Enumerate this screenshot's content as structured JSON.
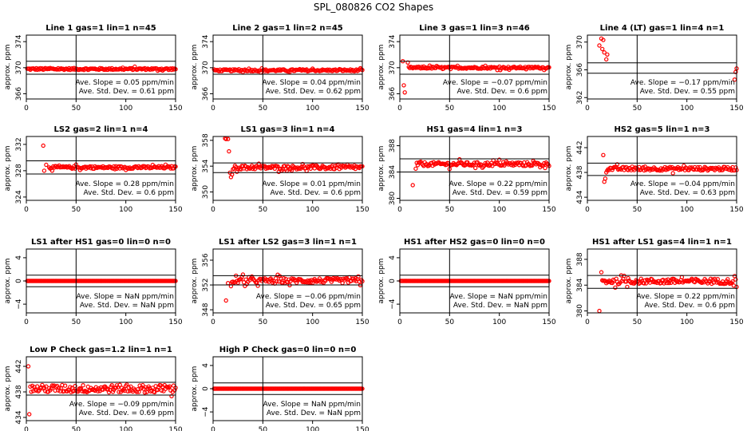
{
  "title": "SPL_080826  CO2 Shapes",
  "chart_data": [
    {
      "type": "scatter",
      "title": "Line 1 gas=1 lin=1 n=45",
      "ylabel": "approx. ppm",
      "xlim": [
        0,
        150
      ],
      "xticks": [
        0,
        50,
        100,
        150
      ],
      "ylim": [
        365.2,
        375.0
      ],
      "yticks": [
        366,
        370,
        374
      ],
      "hlines": [
        371.0,
        369.0
      ],
      "vline": 50,
      "center": 369.8,
      "noise": 0.15,
      "outliers": [],
      "slope_label": "Ave. Slope =",
      "slope_value": "0.05",
      "slope_unit": "ppm/min",
      "sd_label": "Ave. Std. Dev. =",
      "sd_value": "0.61",
      "sd_unit": "ppm"
    },
    {
      "type": "scatter",
      "title": "Line 2 gas=1 lin=2 n=45",
      "ylabel": "approx. ppm",
      "xlim": [
        0,
        150
      ],
      "xticks": [
        0,
        50,
        100,
        150
      ],
      "ylim": [
        365.2,
        375.0
      ],
      "yticks": [
        366,
        370,
        374
      ],
      "hlines": [
        371.0,
        369.0
      ],
      "vline": 50,
      "center": 369.6,
      "noise": 0.15,
      "outliers": [],
      "slope_label": "Ave. Slope =",
      "slope_value": "0.04",
      "slope_unit": "ppm/min",
      "sd_label": "Ave. Std. Dev. =",
      "sd_value": "0.62",
      "sd_unit": "ppm"
    },
    {
      "type": "scatter",
      "title": "Line 3 gas=1 lin=3 n=46",
      "ylabel": "approx. ppm",
      "xlim": [
        0,
        150
      ],
      "xticks": [
        0,
        50,
        100,
        150
      ],
      "ylim": [
        365.2,
        375.0
      ],
      "yticks": [
        366,
        370,
        374
      ],
      "hlines": [
        371.0,
        369.0
      ],
      "vline": 50,
      "center": 370.0,
      "noise": 0.15,
      "outliers": [
        [
          3,
          371.0
        ],
        [
          4,
          367.3
        ],
        [
          5,
          366.2
        ],
        [
          8,
          370.8
        ]
      ],
      "slope_label": "Ave. Slope =",
      "slope_value": "−0.07",
      "slope_unit": "ppm/min",
      "sd_label": "Ave. Std. Dev. =",
      "sd_value": "0.6",
      "sd_unit": "ppm"
    },
    {
      "type": "scatter",
      "title": "Line 4 (LT) gas=1 lin=4 n=1",
      "ylabel": "approx. ppm",
      "xlim": [
        0,
        150
      ],
      "xticks": [
        0,
        50,
        100,
        150
      ],
      "ylim": [
        361.8,
        371.0
      ],
      "yticks": [
        362,
        366,
        370
      ],
      "hlines": [
        367.0,
        365.5
      ],
      "vline": 50,
      "center": 366.4,
      "noise": 0.45,
      "outliers": [
        [
          12,
          369.5
        ],
        [
          14,
          370.5
        ],
        [
          15,
          369.0
        ],
        [
          16,
          370.3
        ],
        [
          17,
          368.5
        ],
        [
          19,
          367.5
        ],
        [
          20,
          368.2
        ],
        [
          148,
          364.6
        ]
      ],
      "slope_label": "Ave. Slope =",
      "slope_value": "−0.17",
      "slope_unit": "ppm/min",
      "sd_label": "Ave. Std. Dev. =",
      "sd_value": "0.55",
      "sd_unit": "ppm"
    },
    {
      "type": "scatter",
      "title": "LS2 gas=2 lin=1 n=4",
      "ylabel": "approx. ppm",
      "xlim": [
        0,
        150
      ],
      "xticks": [
        0,
        50,
        100,
        150
      ],
      "ylim": [
        323.5,
        333.2
      ],
      "yticks": [
        324,
        328,
        332
      ],
      "hlines": [
        329.5,
        327.5
      ],
      "vline": 50,
      "center": 328.5,
      "noise": 0.2,
      "outliers": [
        [
          17,
          331.8
        ],
        [
          18,
          328.0
        ],
        [
          20,
          328.9
        ],
        [
          23,
          328.5
        ]
      ],
      "slope_label": "Ave. Slope =",
      "slope_value": "0.28",
      "slope_unit": "ppm/min",
      "sd_label": "Ave. Std. Dev. =",
      "sd_value": "0.6",
      "sd_unit": "ppm"
    },
    {
      "type": "scatter",
      "title": "LS1 gas=3 lin=1 n=4",
      "ylabel": "approx. ppm",
      "xlim": [
        0,
        150
      ],
      "xticks": [
        0,
        50,
        100,
        150
      ],
      "ylim": [
        348.7,
        358.6
      ],
      "yticks": [
        350,
        354,
        358
      ],
      "hlines": [
        354.5,
        353.0
      ],
      "vline": 50,
      "center": 353.8,
      "noise": 0.3,
      "outliers": [
        [
          12,
          358.3
        ],
        [
          13,
          358.2
        ],
        [
          15,
          358.2
        ],
        [
          16,
          356.3
        ],
        [
          17,
          353.0
        ],
        [
          18,
          352.3
        ],
        [
          19,
          352.7
        ]
      ],
      "slope_label": "Ave. Slope =",
      "slope_value": "0.01",
      "slope_unit": "ppm/min",
      "sd_label": "Ave. Std. Dev. =",
      "sd_value": "0.6",
      "sd_unit": "ppm"
    },
    {
      "type": "scatter",
      "title": "HS1 gas=4 lin=1 n=3",
      "ylabel": "approx. ppm",
      "xlim": [
        0,
        150
      ],
      "xticks": [
        0,
        50,
        100,
        150
      ],
      "ylim": [
        379.7,
        389.4
      ],
      "yticks": [
        380,
        384,
        388
      ],
      "hlines": [
        386.0,
        384.0
      ],
      "vline": 50,
      "center": 385.2,
      "noise": 0.3,
      "outliers": [
        [
          13,
          382.0
        ],
        [
          16,
          384.5
        ]
      ],
      "slope_label": "Ave. Slope =",
      "slope_value": "0.22",
      "slope_unit": "ppm/min",
      "sd_label": "Ave. Std. Dev. =",
      "sd_value": "0.59",
      "sd_unit": "ppm"
    },
    {
      "type": "scatter",
      "title": "HS2 gas=5 lin=1 n=3",
      "ylabel": "approx. ppm",
      "xlim": [
        0,
        150
      ],
      "xticks": [
        0,
        50,
        100,
        150
      ],
      "ylim": [
        433.5,
        443.8
      ],
      "yticks": [
        434,
        438,
        442
      ],
      "hlines": [
        439.5,
        437.5
      ],
      "vline": 50,
      "center": 438.6,
      "noise": 0.3,
      "outliers": [
        [
          16,
          440.8
        ],
        [
          17,
          436.5
        ],
        [
          18,
          437.0
        ],
        [
          19,
          438.0
        ]
      ],
      "slope_label": "Ave. Slope =",
      "slope_value": "−0.04",
      "slope_unit": "ppm/min",
      "sd_label": "Ave. Std. Dev. =",
      "sd_value": "0.63",
      "sd_unit": "ppm"
    },
    {
      "type": "scatter",
      "title": "LS1 after HS1 gas=0 lin=0 n=0",
      "ylabel": "approx. ppm",
      "xlim": [
        0,
        150
      ],
      "xticks": [
        0,
        50,
        100,
        150
      ],
      "ylim": [
        -5.5,
        5.5
      ],
      "yticks": [
        -4,
        0,
        4
      ],
      "hlines": [
        1.0,
        -1.0
      ],
      "vline": 50,
      "center": 0,
      "noise": 0,
      "outliers": [],
      "slope_label": "Ave. Slope =",
      "slope_value": "NaN",
      "slope_unit": "ppm/min",
      "sd_label": "Ave. Std. Dev. =",
      "sd_value": "NaN",
      "sd_unit": "ppm"
    },
    {
      "type": "scatter",
      "title": "LS1 after LS2 gas=3 lin=1 n=1",
      "ylabel": "approx. ppm",
      "xlim": [
        0,
        150
      ],
      "xticks": [
        0,
        50,
        100,
        150
      ],
      "ylim": [
        347.5,
        357.8
      ],
      "yticks": [
        348,
        352,
        356
      ],
      "hlines": [
        353.5,
        352.0
      ],
      "vline": 50,
      "center": 352.7,
      "noise": 0.4,
      "outliers": [
        [
          13,
          349.5
        ],
        [
          15,
          352.3
        ],
        [
          18,
          351.8
        ]
      ],
      "slope_label": "Ave. Slope =",
      "slope_value": "−0.06",
      "slope_unit": "ppm/min",
      "sd_label": "Ave. Std. Dev. =",
      "sd_value": "0.65",
      "sd_unit": "ppm"
    },
    {
      "type": "scatter",
      "title": "HS1 after HS2 gas=0 lin=0 n=0",
      "ylabel": "approx. ppm",
      "xlim": [
        0,
        150
      ],
      "xticks": [
        0,
        50,
        100,
        150
      ],
      "ylim": [
        -5.5,
        5.5
      ],
      "yticks": [
        -4,
        0,
        4
      ],
      "hlines": [
        1.0,
        -1.0
      ],
      "vline": 50,
      "center": 0,
      "noise": 0,
      "outliers": [],
      "slope_label": "Ave. Slope =",
      "slope_value": "NaN",
      "slope_unit": "ppm/min",
      "sd_label": "Ave. Std. Dev. =",
      "sd_value": "NaN",
      "sd_unit": "ppm"
    },
    {
      "type": "scatter",
      "title": "HS1 after LS1 gas=4 lin=1 n=1",
      "ylabel": "approx. ppm",
      "xlim": [
        0,
        150
      ],
      "xticks": [
        0,
        50,
        100,
        150
      ],
      "ylim": [
        379.7,
        389.6
      ],
      "yticks": [
        380,
        384,
        388
      ],
      "hlines": [
        385.5,
        383.5
      ],
      "vline": 50,
      "center": 384.6,
      "noise": 0.4,
      "outliers": [
        [
          12,
          380.0
        ],
        [
          14,
          386.0
        ]
      ],
      "slope_label": "Ave. Slope =",
      "slope_value": "0.22",
      "slope_unit": "ppm/min",
      "sd_label": "Ave. Std. Dev. =",
      "sd_value": "0.6",
      "sd_unit": "ppm"
    },
    {
      "type": "scatter",
      "title": "Low P Check gas=1.2 lin=1 n=1",
      "ylabel": "approx. ppm",
      "xlim": [
        0,
        150
      ],
      "xticks": [
        0,
        50,
        100,
        150
      ],
      "ylim": [
        433.5,
        443.5
      ],
      "yticks": [
        434,
        438,
        442
      ],
      "hlines": [
        439.5,
        437.5
      ],
      "vline": 50,
      "center": 438.5,
      "noise": 0.6,
      "outliers": [
        [
          2,
          442.0
        ],
        [
          3,
          434.5
        ]
      ],
      "slope_label": "Ave. Slope =",
      "slope_value": "−0.09",
      "slope_unit": "ppm/min",
      "sd_label": "Ave. Std. Dev. =",
      "sd_value": "0.69",
      "sd_unit": "ppm"
    },
    {
      "type": "scatter",
      "title": "High P Check gas=0 lin=0 n=0",
      "ylabel": "approx. ppm",
      "xlim": [
        0,
        150
      ],
      "xticks": [
        0,
        50,
        100,
        150
      ],
      "ylim": [
        -5.5,
        5.5
      ],
      "yticks": [
        -4,
        0,
        4
      ],
      "hlines": [
        1.0,
        -1.0
      ],
      "vline": 50,
      "center": 0,
      "noise": 0,
      "outliers": [],
      "slope_label": "Ave. Slope =",
      "slope_value": "NaN",
      "slope_unit": "ppm/min",
      "sd_label": "Ave. Std. Dev. =",
      "sd_value": "NaN",
      "sd_unit": "ppm"
    }
  ]
}
